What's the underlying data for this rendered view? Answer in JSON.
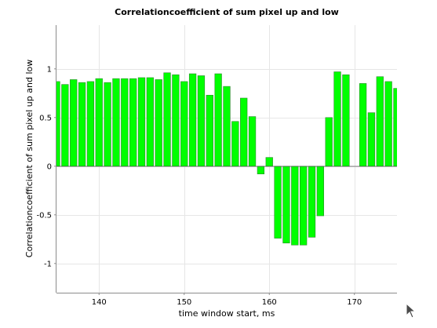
{
  "chart_data": {
    "type": "bar",
    "title": "Correlationcoefficient of sum pixel up and low",
    "xlabel": "time window start, ms",
    "ylabel": "Correlationcoefficient of sum pixel up and low",
    "xlim": [
      135,
      175
    ],
    "ylim": [
      -1.3,
      1.45
    ],
    "xticks": [
      140,
      150,
      160,
      170
    ],
    "yticks": [
      -1,
      -0.5,
      0,
      0.5,
      1
    ],
    "grid": true,
    "bar_width": 0.8,
    "colors": {
      "bar_fill": "#00ff00",
      "bar_edge": "#2e8b2e"
    },
    "x": [
      135,
      136,
      137,
      138,
      139,
      140,
      141,
      142,
      143,
      144,
      145,
      146,
      147,
      148,
      149,
      150,
      151,
      152,
      153,
      154,
      155,
      156,
      157,
      158,
      159,
      160,
      161,
      162,
      163,
      164,
      165,
      166,
      167,
      168,
      169,
      170,
      171,
      172,
      173,
      174,
      175
    ],
    "values": [
      0.87,
      0.84,
      0.89,
      0.86,
      0.87,
      0.9,
      0.86,
      0.9,
      0.9,
      0.9,
      0.91,
      0.91,
      0.89,
      0.96,
      0.94,
      0.87,
      0.95,
      0.93,
      0.73,
      0.95,
      0.82,
      0.46,
      0.7,
      0.51,
      -0.08,
      0.09,
      -0.74,
      -0.79,
      -0.81,
      -0.81,
      -0.73,
      -0.51,
      0.5,
      0.97,
      0.94,
      0,
      0.85,
      0.55,
      0.92,
      0.87,
      0.8
    ]
  },
  "cursor": {
    "icon": "mouse-pointer-icon"
  }
}
